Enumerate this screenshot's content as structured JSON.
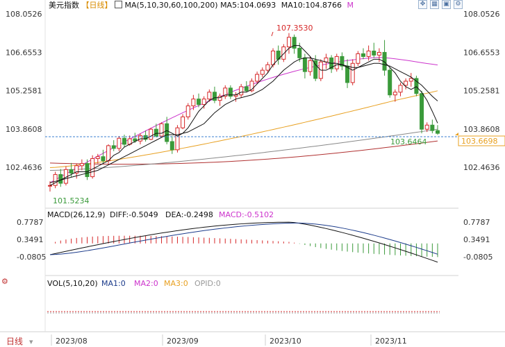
{
  "header": {
    "title": "美元指数",
    "period": "【日线】",
    "ma_config": "MA(5,10,30,60,100,200)",
    "ma5": "MA5:104.0693",
    "ma10": "MA10:104.8766",
    "more": "M"
  },
  "price_axis": [
    "108.0526",
    "106.6553",
    "105.2581",
    "103.8608",
    "102.4636"
  ],
  "price_axis_values": [
    108.0526,
    106.6553,
    105.2581,
    103.8608,
    102.4636
  ],
  "current_price": "103.6698",
  "annotations": {
    "high": "107.3530",
    "low": "101.5234",
    "last_low": "103.6464"
  },
  "macd": {
    "label": "MACD(26,12,9)",
    "diff": "DIFF:-0.5049",
    "dea": "DEA:-0.2498",
    "macd": "MACD:-0.5102",
    "axis": [
      "0.7787",
      "0.3491",
      "-0.0805"
    ],
    "axis_values": [
      0.7787,
      0.3491,
      -0.0805
    ]
  },
  "volume": {
    "label": "VOL(5,10,20)",
    "ma1": "MA1:0",
    "ma2": "MA2:0",
    "ma3": "MA3:0",
    "opid": "OPID:0"
  },
  "footer": {
    "period_button": "日线",
    "dates": [
      "2023/08",
      "2023/09",
      "2023/10",
      "2023/11"
    ]
  },
  "colors": {
    "up": "#d62728",
    "down": "#3a9a3a",
    "ma5": "#111111",
    "ma10": "#111111",
    "ma30": "#cc33cc",
    "ma60": "#e8a020",
    "ma100": "#888888",
    "ma200": "#b03030",
    "price_line": "#3a7fd0"
  },
  "chart_data": {
    "type": "candlestick",
    "x_labels": [
      "2023/08",
      "2023/09",
      "2023/10",
      "2023/11"
    ],
    "ylim": [
      101.0,
      108.3
    ],
    "candles": [
      [
        101.78,
        101.95,
        101.58,
        101.8
      ],
      [
        101.8,
        102.3,
        101.7,
        102.2
      ],
      [
        102.2,
        102.4,
        101.75,
        101.88
      ],
      [
        101.88,
        102.5,
        101.8,
        102.38
      ],
      [
        102.38,
        102.62,
        102.1,
        102.25
      ],
      [
        102.25,
        102.6,
        102.05,
        102.52
      ],
      [
        102.52,
        102.75,
        102.35,
        102.6
      ],
      [
        102.6,
        102.75,
        102.0,
        102.12
      ],
      [
        102.12,
        102.9,
        102.05,
        102.78
      ],
      [
        102.78,
        102.95,
        102.6,
        102.85
      ],
      [
        102.85,
        103.1,
        102.6,
        102.7
      ],
      [
        102.7,
        103.3,
        102.6,
        103.25
      ],
      [
        103.25,
        103.45,
        103.05,
        103.15
      ],
      [
        103.15,
        103.6,
        103.05,
        103.52
      ],
      [
        103.52,
        103.65,
        103.2,
        103.3
      ],
      [
        103.3,
        103.62,
        103.25,
        103.5
      ],
      [
        103.5,
        103.72,
        103.35,
        103.42
      ],
      [
        103.42,
        103.7,
        103.3,
        103.62
      ],
      [
        103.62,
        103.8,
        103.4,
        103.48
      ],
      [
        103.48,
        103.9,
        103.45,
        103.85
      ],
      [
        103.85,
        104.05,
        103.55,
        103.6
      ],
      [
        103.6,
        104.1,
        103.55,
        104.05
      ],
      [
        104.05,
        104.3,
        103.3,
        103.4
      ],
      [
        103.4,
        103.6,
        102.95,
        103.1
      ],
      [
        103.1,
        104.0,
        103.0,
        103.9
      ],
      [
        103.9,
        104.4,
        103.85,
        104.3
      ],
      [
        104.3,
        104.8,
        104.2,
        104.7
      ],
      [
        104.7,
        105.1,
        104.55,
        104.95
      ],
      [
        104.95,
        105.15,
        104.65,
        104.75
      ],
      [
        104.75,
        105.05,
        104.6,
        104.95
      ],
      [
        104.95,
        105.3,
        104.85,
        105.2
      ],
      [
        105.2,
        105.4,
        104.8,
        104.9
      ],
      [
        104.9,
        105.15,
        104.7,
        105.05
      ],
      [
        105.05,
        105.45,
        104.95,
        105.35
      ],
      [
        105.35,
        105.45,
        104.95,
        105.05
      ],
      [
        105.05,
        105.2,
        104.85,
        105.1
      ],
      [
        105.1,
        105.5,
        105.0,
        105.4
      ],
      [
        105.4,
        105.6,
        105.2,
        105.25
      ],
      [
        105.25,
        105.7,
        105.2,
        105.6
      ],
      [
        105.6,
        105.95,
        105.5,
        105.85
      ],
      [
        105.85,
        106.1,
        105.75,
        106.0
      ],
      [
        106.0,
        106.3,
        105.9,
        106.2
      ],
      [
        106.2,
        106.8,
        106.1,
        106.7
      ],
      [
        106.7,
        106.9,
        106.2,
        106.4
      ],
      [
        106.4,
        106.95,
        106.3,
        106.85
      ],
      [
        106.85,
        107.353,
        106.6,
        107.2
      ],
      [
        107.2,
        107.3,
        106.6,
        106.8
      ],
      [
        106.8,
        107.0,
        106.3,
        106.45
      ],
      [
        106.45,
        106.6,
        105.7,
        105.95
      ],
      [
        105.95,
        106.5,
        105.8,
        106.35
      ],
      [
        106.35,
        106.55,
        105.6,
        105.7
      ],
      [
        105.7,
        106.4,
        105.6,
        106.3
      ],
      [
        106.3,
        106.6,
        106.05,
        106.45
      ],
      [
        106.45,
        106.55,
        105.9,
        106.05
      ],
      [
        106.05,
        106.6,
        105.95,
        106.5
      ],
      [
        106.5,
        106.65,
        106.0,
        106.15
      ],
      [
        106.15,
        106.4,
        105.35,
        105.55
      ],
      [
        105.55,
        106.4,
        105.45,
        106.25
      ],
      [
        106.25,
        106.7,
        106.15,
        106.6
      ],
      [
        106.6,
        106.8,
        106.4,
        106.5
      ],
      [
        106.5,
        106.9,
        106.35,
        106.7
      ],
      [
        106.7,
        107.0,
        106.45,
        106.55
      ],
      [
        106.55,
        106.8,
        106.3,
        106.65
      ],
      [
        106.65,
        107.1,
        105.8,
        106.0
      ],
      [
        106.0,
        106.1,
        105.0,
        105.1
      ],
      [
        105.1,
        105.3,
        104.85,
        105.2
      ],
      [
        105.2,
        105.55,
        105.05,
        105.45
      ],
      [
        105.45,
        105.7,
        105.3,
        105.6
      ],
      [
        105.6,
        105.9,
        105.4,
        105.7
      ],
      [
        105.7,
        105.8,
        105.05,
        105.15
      ],
      [
        105.15,
        105.25,
        103.7,
        103.85
      ],
      [
        103.85,
        104.1,
        103.75,
        104.0
      ],
      [
        104.0,
        104.2,
        103.7,
        103.8
      ],
      [
        103.8,
        104.0,
        103.65,
        103.7
      ]
    ],
    "series": [
      {
        "name": "MA5",
        "values": [
          101.8,
          101.9,
          102.0,
          102.1,
          102.2,
          102.3,
          102.3,
          102.3,
          102.4,
          102.5,
          102.6,
          102.7,
          102.9,
          103.0,
          103.2,
          103.3,
          103.4,
          103.5,
          103.5,
          103.6,
          103.7,
          103.7,
          103.8,
          103.7,
          103.6,
          103.7,
          103.9,
          104.2,
          104.5,
          104.7,
          104.9,
          105.0,
          105.0,
          105.1,
          105.1,
          105.1,
          105.2,
          105.2,
          105.3,
          105.5,
          105.7,
          105.9,
          106.2,
          106.4,
          106.6,
          106.8,
          106.9,
          106.9,
          106.7,
          106.5,
          106.2,
          106.0,
          106.0,
          106.1,
          106.2,
          106.2,
          106.1,
          106.0,
          106.1,
          106.2,
          106.3,
          106.4,
          106.4,
          106.3,
          106.1,
          105.9,
          105.6,
          105.4,
          105.3,
          105.4,
          105.2,
          104.9,
          104.5,
          104.07
        ]
      },
      {
        "name": "MA10",
        "values": [
          101.9,
          101.95,
          102.0,
          102.05,
          102.1,
          102.15,
          102.2,
          102.25,
          102.3,
          102.35,
          102.45,
          102.55,
          102.65,
          102.75,
          102.85,
          102.95,
          103.05,
          103.15,
          103.25,
          103.35,
          103.45,
          103.55,
          103.65,
          103.65,
          103.65,
          103.7,
          103.75,
          103.85,
          103.95,
          104.05,
          104.25,
          104.45,
          104.6,
          104.75,
          104.85,
          104.95,
          105.0,
          105.05,
          105.1,
          105.2,
          105.3,
          105.45,
          105.6,
          105.8,
          106.0,
          106.15,
          106.3,
          106.4,
          106.45,
          106.45,
          106.4,
          106.35,
          106.3,
          106.25,
          106.25,
          106.2,
          106.15,
          106.1,
          106.1,
          106.15,
          106.2,
          106.25,
          106.25,
          106.2,
          106.15,
          106.05,
          105.95,
          105.85,
          105.75,
          105.6,
          105.45,
          105.25,
          105.05,
          104.88
        ]
      }
    ]
  }
}
